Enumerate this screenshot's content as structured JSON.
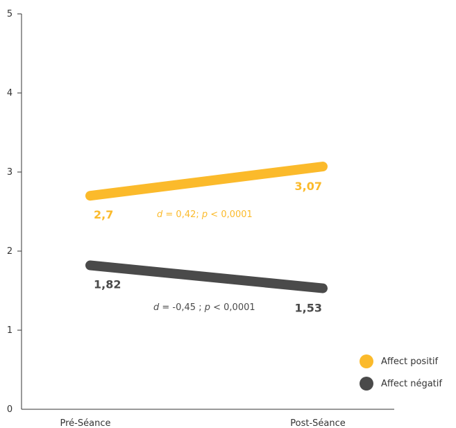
{
  "chart_data": {
    "type": "line",
    "categories": [
      "Pré-Séance",
      "Post-Séance"
    ],
    "ylim": [
      0,
      5
    ],
    "yticks": [
      "0",
      "1",
      "2",
      "3",
      "4",
      "5"
    ],
    "series": [
      {
        "name": "Affect positif",
        "color": "#FBBA2B",
        "values": [
          2.7,
          3.07
        ],
        "value_labels": [
          "2,7",
          "3,07"
        ],
        "annotation": {
          "d": "d",
          "d_text": " = 0,42; ",
          "p": "p",
          "p_text": " < 0,0001"
        }
      },
      {
        "name": "Affect négatif",
        "color": "#4A4A4A",
        "values": [
          1.82,
          1.53
        ],
        "value_labels": [
          "1,82",
          "1,53"
        ],
        "annotation": {
          "d": "d",
          "d_text": " = -0,45 ; ",
          "p": "p",
          "p_text": " < 0,0001"
        }
      }
    ],
    "legend_position": "bottom-right",
    "grid": false
  }
}
